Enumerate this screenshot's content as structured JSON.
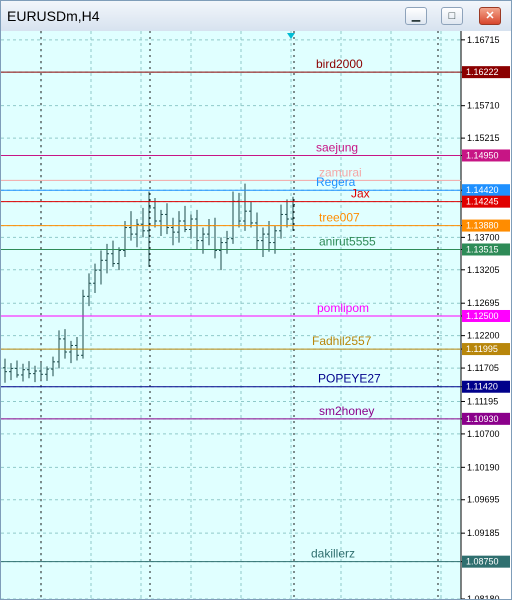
{
  "window": {
    "title": "EURUSDm,H4",
    "minimize_glyph": "▁",
    "maximize_glyph": "□",
    "close_glyph": "✕"
  },
  "chart_data": {
    "type": "candlestick",
    "symbol": "EURUSDm",
    "timeframe": "H4",
    "y_axis_ticks": [
      "1.16715",
      "1.16222",
      "1.15710",
      "1.15215",
      "1.14950",
      "1.14420",
      "1.14245",
      "1.13880",
      "1.13700",
      "1.13515",
      "1.13205",
      "1.12695",
      "1.12500",
      "1.12200",
      "1.11995",
      "1.11705",
      "1.11420",
      "1.11195",
      "1.10930",
      "1.10700",
      "1.10190",
      "1.09695",
      "1.09185",
      "1.08750",
      "1.08180"
    ],
    "ylim": [
      1.0818,
      1.1685
    ],
    "grid": true,
    "horizontal_levels": [
      {
        "label": "bird2000",
        "price": "1.16222",
        "value": 1.16222,
        "color": "#8b0000",
        "label_x": 315
      },
      {
        "label": "saejung",
        "price": "1.14950",
        "value": 1.1495,
        "color": "#c71585",
        "label_x": 315
      },
      {
        "label": "zamurai",
        "price": "",
        "value": 1.1457,
        "color": "#f4a6a6",
        "label_x": 318
      },
      {
        "label": "Regera",
        "price": "1.14420",
        "value": 1.1442,
        "color": "#1e90ff",
        "label_x": 315
      },
      {
        "label": "Jax",
        "price": "1.14245",
        "value": 1.14245,
        "color": "#e00000",
        "label_x": 350
      },
      {
        "label": "tree007",
        "price": "1.13880",
        "value": 1.1388,
        "color": "#ff8c00",
        "label_x": 318
      },
      {
        "label": "anirut5555",
        "price": "1.13515",
        "value": 1.13515,
        "color": "#2e8b57",
        "label_x": 318
      },
      {
        "label": "pomlipom",
        "price": "1.12500",
        "value": 1.125,
        "color": "#ff00ff",
        "label_x": 316
      },
      {
        "label": "Fadhil2557",
        "price": "1.11995",
        "value": 1.11995,
        "color": "#b8860b",
        "label_x": 311
      },
      {
        "label": "POPEYE27",
        "price": "1.11420",
        "value": 1.1142,
        "color": "#00008b",
        "label_x": 317
      },
      {
        "label": "sm2honey",
        "price": "1.10930",
        "value": 1.1093,
        "color": "#8b008b",
        "label_x": 318
      },
      {
        "label": "dakillerz",
        "price": "1.08750",
        "value": 1.0875,
        "color": "#2f6f6f",
        "label_x": 310
      }
    ],
    "candles": [
      [
        1.1171,
        1.1185,
        1.1148,
        1.1165
      ],
      [
        1.1165,
        1.1178,
        1.1152,
        1.117
      ],
      [
        1.117,
        1.1182,
        1.1156,
        1.116
      ],
      [
        1.116,
        1.1177,
        1.115,
        1.1168
      ],
      [
        1.1168,
        1.1181,
        1.1155,
        1.1162
      ],
      [
        1.1162,
        1.1174,
        1.1149,
        1.1166
      ],
      [
        1.1166,
        1.1179,
        1.1153,
        1.1161
      ],
      [
        1.1161,
        1.1173,
        1.1151,
        1.1169
      ],
      [
        1.1169,
        1.1188,
        1.1158,
        1.118
      ],
      [
        1.118,
        1.1228,
        1.117,
        1.1215
      ],
      [
        1.1215,
        1.123,
        1.1185,
        1.1195
      ],
      [
        1.1195,
        1.1212,
        1.1178,
        1.1205
      ],
      [
        1.1205,
        1.1218,
        1.1182,
        1.119
      ],
      [
        1.119,
        1.129,
        1.1185,
        1.128
      ],
      [
        1.128,
        1.1315,
        1.1265,
        1.13
      ],
      [
        1.13,
        1.133,
        1.1285,
        1.132
      ],
      [
        1.132,
        1.135,
        1.1298,
        1.1335
      ],
      [
        1.1335,
        1.136,
        1.1315,
        1.1345
      ],
      [
        1.1345,
        1.1365,
        1.1325,
        1.133
      ],
      [
        1.133,
        1.1355,
        1.132,
        1.135
      ],
      [
        1.135,
        1.1395,
        1.134,
        1.1385
      ],
      [
        1.1385,
        1.141,
        1.1365,
        1.1375
      ],
      [
        1.1375,
        1.1398,
        1.1355,
        1.139
      ],
      [
        1.139,
        1.1415,
        1.137,
        1.138
      ],
      [
        1.138,
        1.144,
        1.1325,
        1.1415
      ],
      [
        1.1415,
        1.143,
        1.1385,
        1.1395
      ],
      [
        1.1395,
        1.1412,
        1.1372,
        1.1405
      ],
      [
        1.1405,
        1.1422,
        1.1375,
        1.1385
      ],
      [
        1.1385,
        1.14,
        1.1358,
        1.1378
      ],
      [
        1.1378,
        1.141,
        1.1362,
        1.1395
      ],
      [
        1.1395,
        1.1418,
        1.1378,
        1.1382
      ],
      [
        1.1382,
        1.1405,
        1.1368,
        1.1398
      ],
      [
        1.1398,
        1.1412,
        1.1352,
        1.1365
      ],
      [
        1.1365,
        1.1385,
        1.1345,
        1.1375
      ],
      [
        1.1375,
        1.1398,
        1.1358,
        1.1388
      ],
      [
        1.1388,
        1.14,
        1.1338,
        1.135
      ],
      [
        1.135,
        1.137,
        1.132,
        1.1362
      ],
      [
        1.1362,
        1.138,
        1.1345,
        1.1368
      ],
      [
        1.1368,
        1.144,
        1.136,
        1.1425
      ],
      [
        1.1425,
        1.1438,
        1.1385,
        1.1395
      ],
      [
        1.1395,
        1.1452,
        1.138,
        1.141
      ],
      [
        1.141,
        1.1425,
        1.1385,
        1.1392
      ],
      [
        1.1392,
        1.1408,
        1.1352,
        1.1365
      ],
      [
        1.1365,
        1.1385,
        1.134,
        1.1375
      ],
      [
        1.1375,
        1.1395,
        1.1348,
        1.1362
      ],
      [
        1.1362,
        1.1388,
        1.1345,
        1.138
      ],
      [
        1.138,
        1.142,
        1.1368,
        1.1405
      ],
      [
        1.1405,
        1.1428,
        1.1385,
        1.1398
      ],
      [
        1.1398,
        1.1432,
        1.138,
        1.142
      ]
    ]
  }
}
